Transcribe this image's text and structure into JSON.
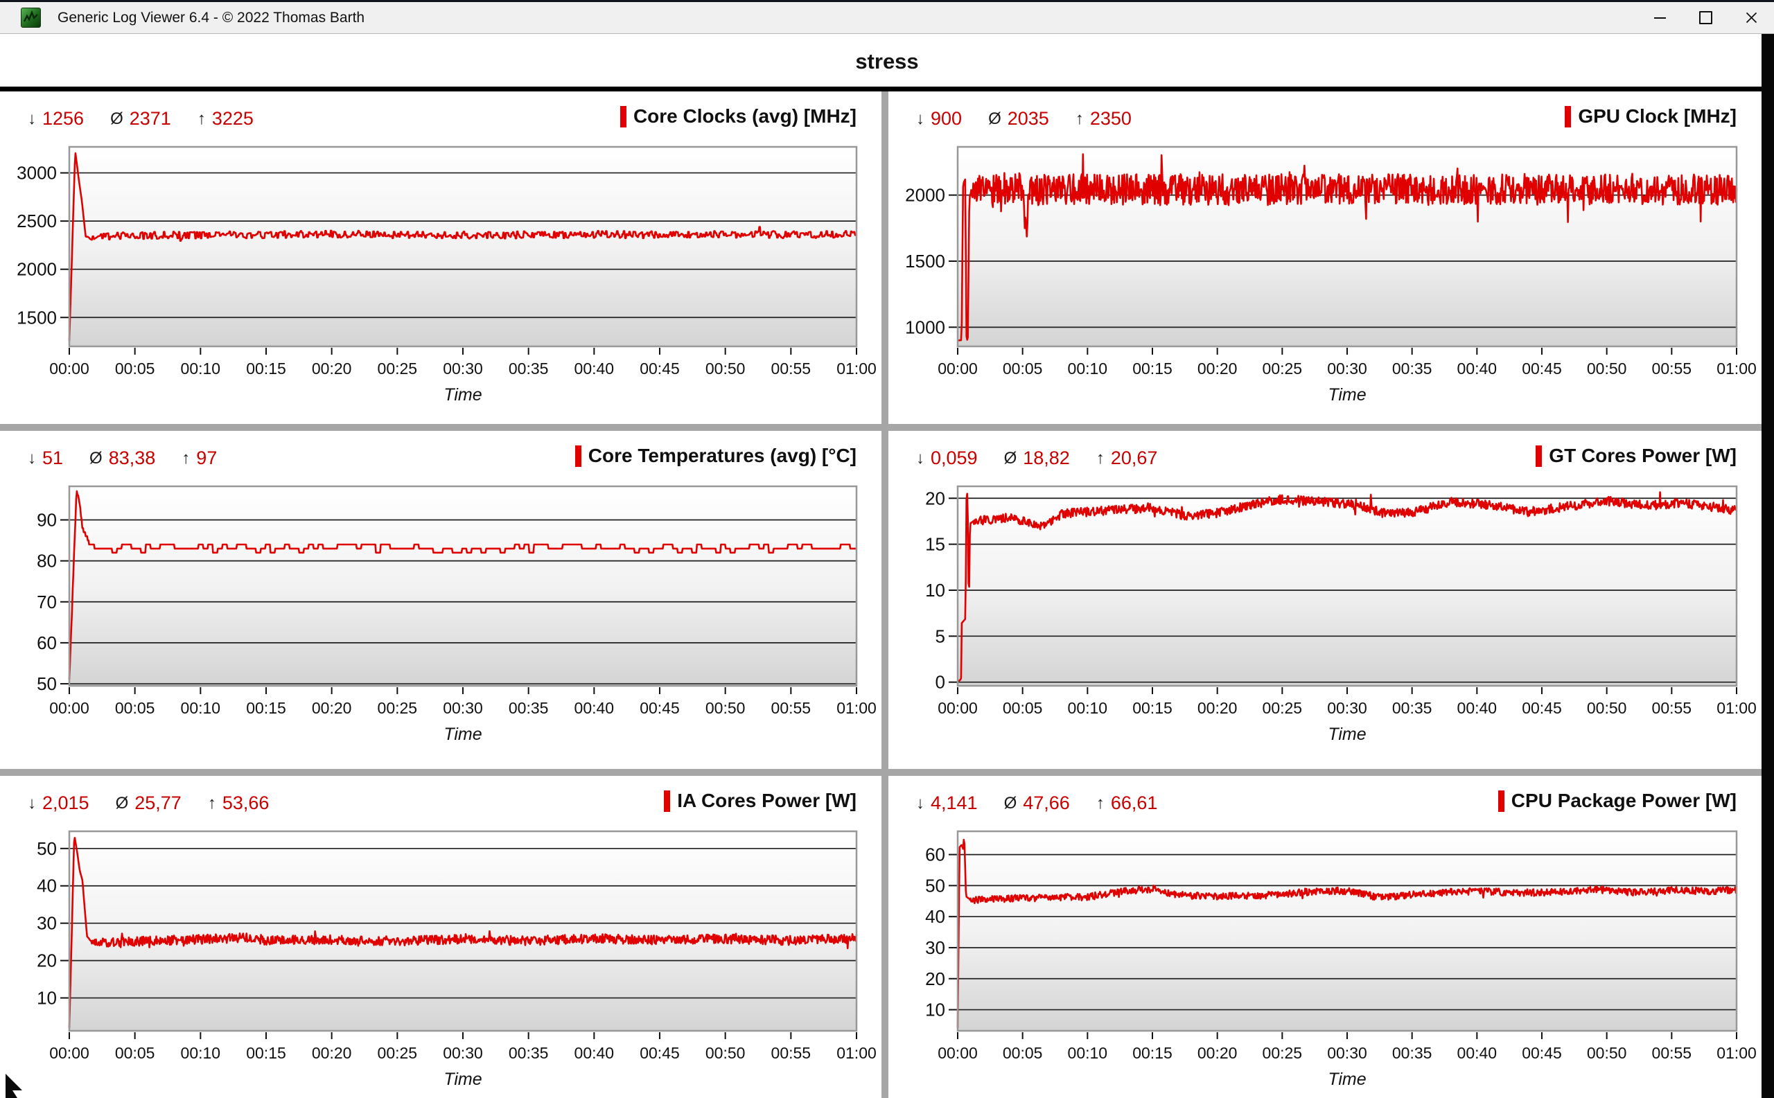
{
  "window": {
    "title": "Generic Log Viewer 6.4 - © 2022 Thomas Barth",
    "icons": [
      "app-logo-icon",
      "minimize-icon",
      "maximize-icon",
      "close-icon"
    ]
  },
  "header": {
    "title": "stress"
  },
  "colors": {
    "series_red": "#e10000",
    "stats_red": "#c90000",
    "panel_divider": "#a6a6a6",
    "grid_line": "#1f1f1f",
    "plot_border": "#989898",
    "plot_bg_top": "#ffffff",
    "plot_bg_bottom": "#d4d4d4"
  },
  "stats_icons": {
    "min": "↓",
    "avg": "Ø",
    "max": "↑"
  },
  "chart_data": [
    {
      "type": "line",
      "title": "Core Clocks (avg) [MHz]",
      "stats": {
        "min": "1256",
        "avg": "2371",
        "max": "3225"
      },
      "xlabel": "Time",
      "x_ticks": [
        "00:00",
        "00:05",
        "00:10",
        "00:15",
        "00:20",
        "00:25",
        "00:30",
        "00:35",
        "00:40",
        "00:45",
        "00:50",
        "00:55",
        "01:00"
      ],
      "x_range_minutes": [
        0,
        60
      ],
      "y_ticks": [
        1500,
        2000,
        2500,
        3000
      ],
      "ylim": [
        1200,
        3270
      ],
      "legend_color": "#e10000",
      "series": [
        {
          "name": "Core Clocks (avg)",
          "profile": [
            [
              0,
              1256
            ],
            [
              0.45,
              3225
            ],
            [
              0.75,
              2905
            ],
            [
              0.95,
              2715
            ],
            [
              1.25,
              2340
            ],
            [
              1.8,
              2310
            ],
            [
              2.4,
              2345
            ],
            [
              10,
              2355
            ],
            [
              20,
              2365
            ],
            [
              30,
              2355
            ],
            [
              40,
              2360
            ],
            [
              50,
              2360
            ],
            [
              60,
              2360
            ]
          ],
          "noise": 38,
          "noise_from": 1.3,
          "hold": 2,
          "spikes": {
            "rate": 0.015,
            "amp": 120
          },
          "clamp": [
            1256,
            3225
          ]
        }
      ]
    },
    {
      "type": "line",
      "title": "GPU Clock [MHz]",
      "stats": {
        "min": "900",
        "avg": "2035",
        "max": "2350"
      },
      "xlabel": "Time",
      "x_ticks": [
        "00:00",
        "00:05",
        "00:10",
        "00:15",
        "00:20",
        "00:25",
        "00:30",
        "00:35",
        "00:40",
        "00:45",
        "00:50",
        "00:55",
        "01:00"
      ],
      "x_range_minutes": [
        0,
        60
      ],
      "y_ticks": [
        1000,
        1500,
        2000
      ],
      "ylim": [
        855,
        2365
      ],
      "legend_color": "#e10000",
      "series": [
        {
          "name": "GPU Clock",
          "profile": [
            [
              0,
              900
            ],
            [
              0.3,
              902
            ],
            [
              0.42,
              2085
            ],
            [
              0.58,
              2120
            ],
            [
              0.68,
              910
            ],
            [
              0.78,
              900
            ],
            [
              0.9,
              1990
            ],
            [
              1.3,
              2040
            ],
            [
              5.0,
              2060
            ],
            [
              5.3,
              1700
            ],
            [
              5.6,
              2040
            ],
            [
              60,
              2045
            ]
          ],
          "noise": 118,
          "noise_from": 0.9,
          "hold": 1,
          "spikes": {
            "rate": 0.04,
            "amp": 170
          },
          "clamp": [
            900,
            2350
          ]
        }
      ]
    },
    {
      "type": "line",
      "title": "Core Temperatures (avg) [°C]",
      "stats": {
        "min": "51",
        "avg": "83,38",
        "max": "97"
      },
      "xlabel": "Time",
      "x_ticks": [
        "00:00",
        "00:05",
        "00:10",
        "00:15",
        "00:20",
        "00:25",
        "00:30",
        "00:35",
        "00:40",
        "00:45",
        "00:50",
        "00:55",
        "01:00"
      ],
      "x_range_minutes": [
        0,
        60
      ],
      "y_ticks": [
        50,
        60,
        70,
        80,
        90
      ],
      "ylim": [
        49.5,
        98.2
      ],
      "legend_color": "#e10000",
      "series": [
        {
          "name": "Core Temperatures (avg)",
          "profile": [
            [
              0,
              51
            ],
            [
              0.55,
              97
            ],
            [
              0.75,
              95
            ],
            [
              1.0,
              88
            ],
            [
              1.5,
              84.5
            ],
            [
              2.2,
              82.8
            ],
            [
              10,
              83
            ],
            [
              20,
              83.3
            ],
            [
              30,
              83
            ],
            [
              40,
              83.2
            ],
            [
              50,
              83
            ],
            [
              60,
              83.4
            ]
          ],
          "noise": 0.85,
          "noise_from": 2.0,
          "hold": 7,
          "quantize": 1,
          "spikes": {
            "rate": 0.012,
            "amp": 2.2
          },
          "clamp": [
            51,
            97
          ]
        }
      ]
    },
    {
      "type": "line",
      "title": "GT Cores Power [W]",
      "stats": {
        "min": "0,059",
        "avg": "18,82",
        "max": "20,67"
      },
      "xlabel": "Time",
      "x_ticks": [
        "00:00",
        "00:05",
        "00:10",
        "00:15",
        "00:20",
        "00:25",
        "00:30",
        "00:35",
        "00:40",
        "00:45",
        "00:50",
        "00:55",
        "01:00"
      ],
      "x_range_minutes": [
        0,
        60
      ],
      "y_ticks": [
        0,
        5,
        10,
        15,
        20
      ],
      "ylim": [
        -0.4,
        21.3
      ],
      "legend_color": "#e10000",
      "series": [
        {
          "name": "GT Cores Power",
          "profile": [
            [
              0,
              0.059
            ],
            [
              0.26,
              0.3
            ],
            [
              0.3,
              6.4
            ],
            [
              0.6,
              6.9
            ],
            [
              0.68,
              20.2
            ],
            [
              0.76,
              20.67
            ],
            [
              0.86,
              7.4
            ],
            [
              0.95,
              17.3
            ],
            [
              1.6,
              17.6
            ],
            [
              4,
              17.9
            ],
            [
              6.5,
              16.9
            ],
            [
              8,
              18.3
            ],
            [
              12,
              18.7
            ],
            [
              15,
              19
            ],
            [
              17.5,
              18.1
            ],
            [
              20,
              18.4
            ],
            [
              23,
              19.4
            ],
            [
              25,
              19.9
            ],
            [
              28,
              19.6
            ],
            [
              31,
              19.2
            ],
            [
              33,
              18.3
            ],
            [
              35,
              18.5
            ],
            [
              38,
              19.6
            ],
            [
              41,
              19.3
            ],
            [
              44,
              18.5
            ],
            [
              47,
              19.1
            ],
            [
              50,
              19.7
            ],
            [
              53,
              19.2
            ],
            [
              56,
              19.5
            ],
            [
              58,
              19.0
            ],
            [
              60,
              18.7
            ]
          ],
          "noise": 0.5,
          "noise_from": 1.0,
          "hold": 1,
          "spikes": {
            "rate": 0.01,
            "amp": 1.3
          },
          "clamp": [
            0.059,
            20.67
          ]
        }
      ]
    },
    {
      "type": "line",
      "title": "IA Cores Power [W]",
      "stats": {
        "min": "2,015",
        "avg": "25,77",
        "max": "53,66"
      },
      "xlabel": "Time",
      "x_ticks": [
        "00:00",
        "00:05",
        "00:10",
        "00:15",
        "00:20",
        "00:25",
        "00:30",
        "00:35",
        "00:40",
        "00:45",
        "00:50",
        "00:55",
        "01:00"
      ],
      "x_range_minutes": [
        0,
        60
      ],
      "y_ticks": [
        10,
        20,
        30,
        40,
        50
      ],
      "ylim": [
        1.2,
        54.6
      ],
      "legend_color": "#e10000",
      "series": [
        {
          "name": "IA Cores Power",
          "profile": [
            [
              0,
              2.015
            ],
            [
              0.38,
              53.66
            ],
            [
              0.62,
              48.5
            ],
            [
              0.8,
              44
            ],
            [
              1.0,
              41.5
            ],
            [
              1.35,
              26.5
            ],
            [
              1.8,
              24.6
            ],
            [
              5,
              25.1
            ],
            [
              10,
              25.7
            ],
            [
              14,
              26.2
            ],
            [
              15,
              25.4
            ],
            [
              20,
              25.6
            ],
            [
              25,
              25.2
            ],
            [
              30,
              25.7
            ],
            [
              35,
              25.3
            ],
            [
              40,
              25.9
            ],
            [
              45,
              25.5
            ],
            [
              50,
              25.8
            ],
            [
              55,
              25.4
            ],
            [
              60,
              26.0
            ]
          ],
          "noise": 1.25,
          "noise_from": 1.5,
          "hold": 1,
          "spikes": {
            "rate": 0.02,
            "amp": 2.0
          },
          "clamp": [
            2.015,
            53.66
          ]
        }
      ]
    },
    {
      "type": "line",
      "title": "CPU Package Power [W]",
      "stats": {
        "min": "4,141",
        "avg": "47,66",
        "max": "66,61"
      },
      "xlabel": "Time",
      "x_ticks": [
        "00:00",
        "00:05",
        "00:10",
        "00:15",
        "00:20",
        "00:25",
        "00:30",
        "00:35",
        "00:40",
        "00:45",
        "00:50",
        "00:55",
        "01:00"
      ],
      "x_range_minutes": [
        0,
        60
      ],
      "y_ticks": [
        10,
        20,
        30,
        40,
        50,
        60
      ],
      "ylim": [
        3.2,
        67.5
      ],
      "legend_color": "#e10000",
      "series": [
        {
          "name": "CPU Package Power",
          "profile": [
            [
              0,
              4.141
            ],
            [
              0.14,
              62.3
            ],
            [
              0.3,
              63.2
            ],
            [
              0.42,
              61.8
            ],
            [
              0.5,
              66.61
            ],
            [
              0.64,
              46.5
            ],
            [
              1.1,
              45.2
            ],
            [
              4,
              45.8
            ],
            [
              7,
              46.1
            ],
            [
              10,
              46.4
            ],
            [
              13,
              48.2
            ],
            [
              15,
              49.0
            ],
            [
              16.5,
              47.2
            ],
            [
              20,
              46.4
            ],
            [
              24,
              47.0
            ],
            [
              27,
              48.0
            ],
            [
              30,
              48.4
            ],
            [
              32.5,
              46.2
            ],
            [
              36,
              47.4
            ],
            [
              40,
              48.3
            ],
            [
              43,
              47.6
            ],
            [
              46,
              48.0
            ],
            [
              49,
              48.8
            ],
            [
              52,
              47.8
            ],
            [
              55,
              48.5
            ],
            [
              58,
              48.2
            ],
            [
              60,
              48.8
            ]
          ],
          "noise": 1.15,
          "noise_from": 0.8,
          "hold": 1,
          "spikes": {
            "rate": 0.015,
            "amp": 1.6
          },
          "clamp": [
            4.141,
            66.61
          ]
        }
      ]
    }
  ]
}
